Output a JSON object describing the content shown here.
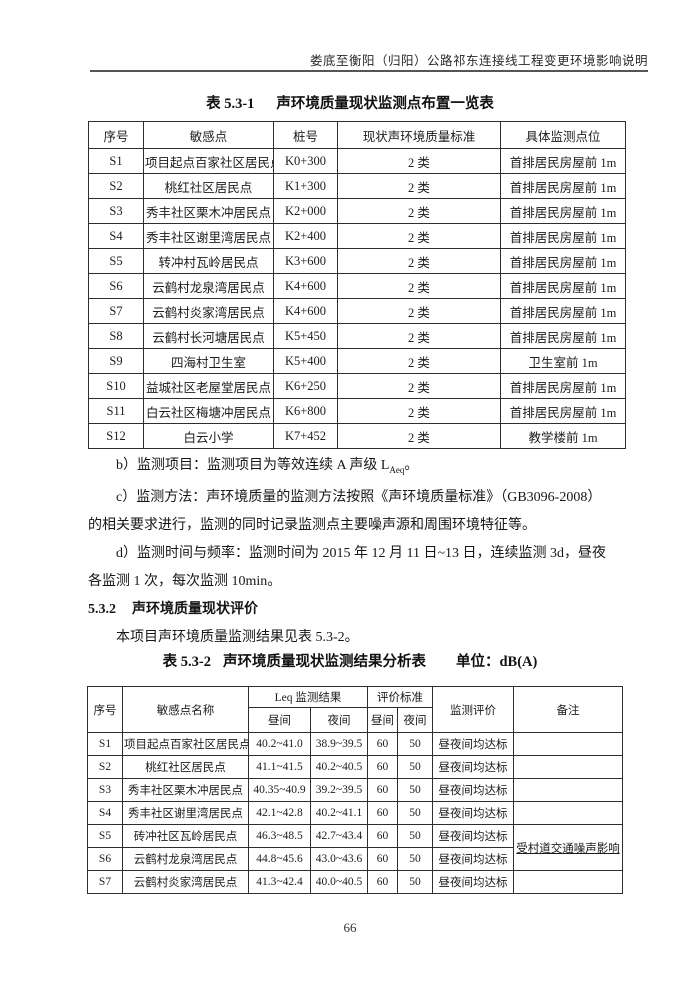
{
  "page": {
    "running_header": "娄底至衡阳（归阳）公路祁东连接线工程变更环境影响说明",
    "page_number": "66"
  },
  "table1": {
    "title_label": "表 5.3-1",
    "title_text": "声环境质量现状监测点布置一览表",
    "columns": [
      "序号",
      "敏感点",
      "桩号",
      "现状声环境质量标准",
      "具体监测点位"
    ],
    "rows": [
      [
        "S1",
        "项目起点百家社区居民点",
        "K0+300",
        "2 类",
        "首排居民房屋前 1m"
      ],
      [
        "S2",
        "桃红社区居民点",
        "K1+300",
        "2 类",
        "首排居民房屋前 1m"
      ],
      [
        "S3",
        "秀丰社区栗木冲居民点",
        "K2+000",
        "2 类",
        "首排居民房屋前 1m"
      ],
      [
        "S4",
        "秀丰社区谢里湾居民点",
        "K2+400",
        "2 类",
        "首排居民房屋前 1m"
      ],
      [
        "S5",
        "转冲村瓦岭居民点",
        "K3+600",
        "2 类",
        "首排居民房屋前 1m"
      ],
      [
        "S6",
        "云鹤村龙泉湾居民点",
        "K4+600",
        "2 类",
        "首排居民房屋前 1m"
      ],
      [
        "S7",
        "云鹤村炎家湾居民点",
        "K4+600",
        "2 类",
        "首排居民房屋前 1m"
      ],
      [
        "S8",
        "云鹤村长河塘居民点",
        "K5+450",
        "2 类",
        "首排居民房屋前 1m"
      ],
      [
        "S9",
        "四海村卫生室",
        "K5+400",
        "2 类",
        "卫生室前 1m"
      ],
      [
        "S10",
        "益城社区老屋堂居民点",
        "K6+250",
        "2 类",
        "首排居民房屋前 1m"
      ],
      [
        "S11",
        "白云社区梅塘冲居民点",
        "K6+800",
        "2 类",
        "首排居民房屋前 1m"
      ],
      [
        "S12",
        "白云小学",
        "K7+452",
        "2 类",
        "教学楼前 1m"
      ]
    ]
  },
  "paragraphs": {
    "b_prefix": "b）监测项目：监测项目为等效连续 A 声级 L",
    "b_sub": "Aeq",
    "b_suffix": "。",
    "c": "c）监测方法：声环境质量的监测方法按照《声环境质量标准》（GB3096-2008）\n的相关要求进行，监测的同时记录监测点主要噪声源和周围环境特征等。",
    "d": "d）监测时间与频率：监测时间为 2015 年 12 月 11 日~13 日，连续监测 3d，昼夜\n各监测 1 次，每次监测 10min。",
    "section_number": "5.3.2",
    "section_title": "声环境质量现状评价",
    "intro_table2": "本项目声环境质量监测结果见表 5.3-2。"
  },
  "table2": {
    "title_label": "表 5.3-2",
    "title_text": "声环境质量现状监测结果分析表",
    "unit_label": "单位：dB(A)",
    "header": {
      "seq": "序号",
      "name": "敏感点名称",
      "leq_group": "Leq 监测结果",
      "std_group": "评价标准",
      "day": "昼间",
      "night": "夜间",
      "std_day": "昼间",
      "std_night": "夜间",
      "evaluation": "监测评价",
      "note": "备注"
    },
    "rows": [
      {
        "seq": "S1",
        "name": "项目起点百家社区居民点",
        "day": "40.2~41.0",
        "night": "38.9~39.5",
        "std_day": "60",
        "std_night": "50",
        "evaluation": "昼夜间均达标",
        "note": ""
      },
      {
        "seq": "S2",
        "name": "桃红社区居民点",
        "day": "41.1~41.5",
        "night": "40.2~40.5",
        "std_day": "60",
        "std_night": "50",
        "evaluation": "昼夜间均达标",
        "note": ""
      },
      {
        "seq": "S3",
        "name": "秀丰社区栗木冲居民点",
        "day": "40.35~40.9",
        "night": "39.2~39.5",
        "std_day": "60",
        "std_night": "50",
        "evaluation": "昼夜间均达标",
        "note": ""
      },
      {
        "seq": "S4",
        "name": "秀丰社区谢里湾居民点",
        "day": "42.1~42.8",
        "night": "40.2~41.1",
        "std_day": "60",
        "std_night": "50",
        "evaluation": "昼夜间均达标",
        "note": ""
      },
      {
        "seq": "S5",
        "name": "砖冲社区瓦岭居民点",
        "day": "46.3~48.5",
        "night": "42.7~43.4",
        "std_day": "60",
        "std_night": "50",
        "evaluation": "昼夜间均达标",
        "note": "受村道交通噪声影响",
        "note_rowspan": 2
      },
      {
        "seq": "S6",
        "name": "云鹤村龙泉湾居民点",
        "day": "44.8~45.6",
        "night": "43.0~43.6",
        "std_day": "60",
        "std_night": "50",
        "evaluation": "昼夜间均达标",
        "note_merged": true
      },
      {
        "seq": "S7",
        "name": "云鹤村炎家湾居民点",
        "day": "41.3~42.4",
        "night": "40.0~40.5",
        "std_day": "60",
        "std_night": "50",
        "evaluation": "昼夜间均达标",
        "note": ""
      }
    ]
  }
}
